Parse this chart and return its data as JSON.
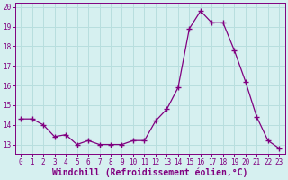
{
  "x": [
    0,
    1,
    2,
    3,
    4,
    5,
    6,
    7,
    8,
    9,
    10,
    11,
    12,
    13,
    14,
    15,
    16,
    17,
    18,
    19,
    20,
    21,
    22,
    23
  ],
  "y": [
    14.3,
    14.3,
    14.0,
    13.4,
    13.5,
    13.0,
    13.2,
    13.0,
    13.0,
    13.0,
    13.2,
    13.2,
    14.2,
    14.8,
    15.9,
    18.9,
    19.8,
    19.2,
    19.2,
    17.8,
    16.2,
    14.4,
    13.2,
    12.8
  ],
  "line_color": "#800080",
  "marker": "+",
  "marker_size": 4,
  "bg_color": "#d6f0f0",
  "grid_color": "#b8dede",
  "xlabel": "Windchill (Refroidissement éolien,°C)",
  "ylabel": "",
  "title": "",
  "ylim_min": 12.5,
  "ylim_max": 20.2,
  "xlim_min": -0.5,
  "xlim_max": 23.5,
  "yticks": [
    13,
    14,
    15,
    16,
    17,
    18,
    19,
    20
  ],
  "xticks": [
    0,
    1,
    2,
    3,
    4,
    5,
    6,
    7,
    8,
    9,
    10,
    11,
    12,
    13,
    14,
    15,
    16,
    17,
    18,
    19,
    20,
    21,
    22,
    23
  ],
  "tick_label_color": "#800080",
  "tick_label_fontsize": 5.5,
  "xlabel_fontsize": 7.0,
  "spine_color": "#800080",
  "linewidth": 0.9,
  "markeredgewidth": 1.0
}
